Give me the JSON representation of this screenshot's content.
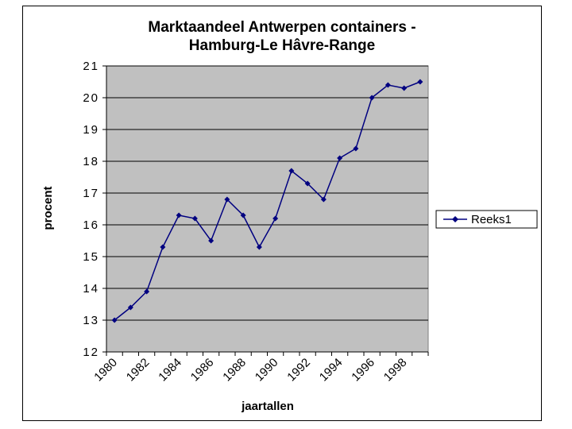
{
  "chart_data": {
    "type": "line",
    "title_lines": [
      "Marktaandeel Antwerpen containers -",
      "Hamburg-Le Hâvre-Range"
    ],
    "xlabel": "jaartallen",
    "ylabel": "procent",
    "x_tick_labels": [
      "1980",
      "1982",
      "1984",
      "1986",
      "1988",
      "1990",
      "1992",
      "1994",
      "1996",
      "1998"
    ],
    "y_ticks": [
      12,
      13,
      14,
      15,
      16,
      17,
      18,
      19,
      20,
      21
    ],
    "ylim": [
      12,
      21
    ],
    "grid": true,
    "legend_position": "right",
    "series": [
      {
        "name": "Reeks1",
        "color": "#000080",
        "x": [
          1980,
          1981,
          1982,
          1983,
          1984,
          1985,
          1986,
          1987,
          1988,
          1989,
          1990,
          1991,
          1992,
          1993,
          1994,
          1995,
          1996,
          1997,
          1998,
          1999
        ],
        "values": [
          13.0,
          13.4,
          13.9,
          15.3,
          16.3,
          16.2,
          15.5,
          16.8,
          16.3,
          15.3,
          16.2,
          17.7,
          17.3,
          16.8,
          18.1,
          18.4,
          20.0,
          20.4,
          20.3,
          20.5
        ]
      }
    ],
    "colors": {
      "plot_background": "#c0c0c0",
      "gridline": "#000000",
      "line": "#000080"
    }
  }
}
